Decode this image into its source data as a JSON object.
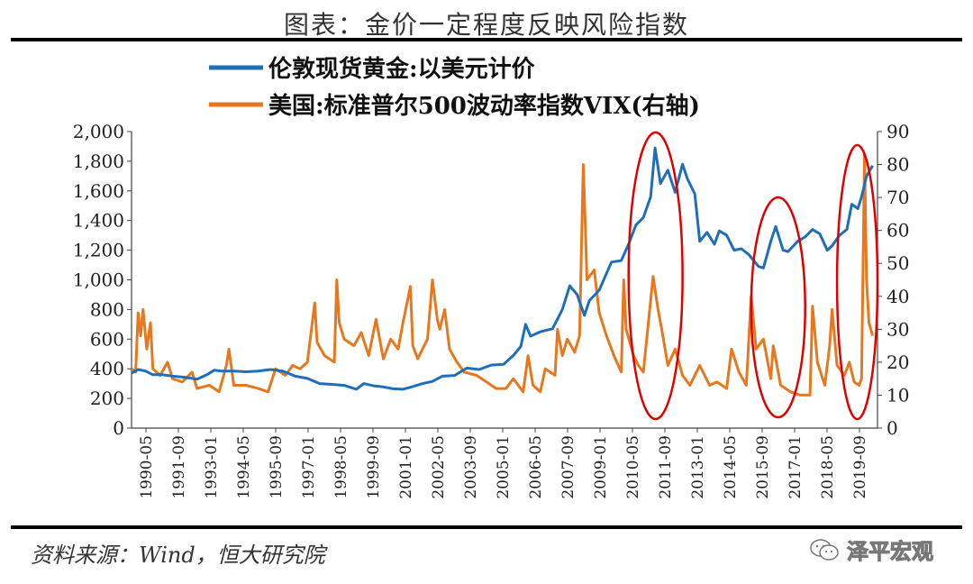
{
  "page": {
    "title": "图表：金价一定程度反映风险指数",
    "source": "资料来源：Wind，恒大研究院",
    "watermark": "泽平宏观"
  },
  "chart_data": {
    "type": "line",
    "title": "图表：金价一定程度反映风险指数",
    "xlabel": "",
    "ylabel": "",
    "x_tick_labels": [
      "1990-05",
      "1991-09",
      "1993-01",
      "1994-05",
      "1995-09",
      "1997-01",
      "1998-05",
      "1999-09",
      "2001-01",
      "2002-05",
      "2003-09",
      "2005-01",
      "2006-05",
      "2007-09",
      "2009-01",
      "2010-05",
      "2011-09",
      "2013-01",
      "2014-05",
      "2015-09",
      "2017-01",
      "2018-05",
      "2019-09"
    ],
    "y_left": {
      "ylim": [
        0,
        2000
      ],
      "ticks": [
        "0",
        "200",
        "400",
        "600",
        "800",
        "1,000",
        "1,200",
        "1,400",
        "1,600",
        "1,800",
        "2,000"
      ]
    },
    "y_right": {
      "ylim": [
        0,
        90
      ],
      "ticks": [
        "0",
        "10",
        "20",
        "30",
        "40",
        "50",
        "60",
        "70",
        "80",
        "90"
      ]
    },
    "series": [
      {
        "name": "伦敦现货黄金:以美元计价",
        "axis": "left",
        "color": "#1f6fb8",
        "points": [
          [
            1990.33,
            370
          ],
          [
            1990.6,
            395
          ],
          [
            1990.9,
            385
          ],
          [
            1991.2,
            360
          ],
          [
            1991.6,
            360
          ],
          [
            1992.0,
            350
          ],
          [
            1992.5,
            343
          ],
          [
            1993.0,
            330
          ],
          [
            1993.4,
            360
          ],
          [
            1993.7,
            390
          ],
          [
            1994.0,
            385
          ],
          [
            1994.5,
            385
          ],
          [
            1995.0,
            380
          ],
          [
            1995.5,
            385
          ],
          [
            1996.0,
            395
          ],
          [
            1996.5,
            385
          ],
          [
            1997.0,
            350
          ],
          [
            1997.5,
            335
          ],
          [
            1998.0,
            300
          ],
          [
            1998.5,
            295
          ],
          [
            1999.0,
            288
          ],
          [
            1999.5,
            262
          ],
          [
            1999.8,
            300
          ],
          [
            2000.2,
            285
          ],
          [
            2000.6,
            278
          ],
          [
            2001.0,
            265
          ],
          [
            2001.4,
            262
          ],
          [
            2001.8,
            280
          ],
          [
            2002.2,
            300
          ],
          [
            2002.6,
            315
          ],
          [
            2003.0,
            350
          ],
          [
            2003.5,
            355
          ],
          [
            2004.0,
            405
          ],
          [
            2004.5,
            395
          ],
          [
            2005.0,
            425
          ],
          [
            2005.5,
            430
          ],
          [
            2005.9,
            490
          ],
          [
            2006.2,
            550
          ],
          [
            2006.4,
            700
          ],
          [
            2006.6,
            620
          ],
          [
            2007.0,
            650
          ],
          [
            2007.5,
            670
          ],
          [
            2007.9,
            800
          ],
          [
            2008.2,
            960
          ],
          [
            2008.5,
            900
          ],
          [
            2008.8,
            760
          ],
          [
            2009.0,
            860
          ],
          [
            2009.4,
            930
          ],
          [
            2009.9,
            1120
          ],
          [
            2010.3,
            1130
          ],
          [
            2010.6,
            1240
          ],
          [
            2010.9,
            1370
          ],
          [
            2011.2,
            1420
          ],
          [
            2011.5,
            1560
          ],
          [
            2011.68,
            1890
          ],
          [
            2011.9,
            1650
          ],
          [
            2012.2,
            1740
          ],
          [
            2012.5,
            1590
          ],
          [
            2012.8,
            1780
          ],
          [
            2013.0,
            1680
          ],
          [
            2013.3,
            1580
          ],
          [
            2013.5,
            1260
          ],
          [
            2013.8,
            1320
          ],
          [
            2014.1,
            1240
          ],
          [
            2014.3,
            1330
          ],
          [
            2014.6,
            1300
          ],
          [
            2014.9,
            1200
          ],
          [
            2015.2,
            1210
          ],
          [
            2015.5,
            1170
          ],
          [
            2015.9,
            1090
          ],
          [
            2016.1,
            1080
          ],
          [
            2016.4,
            1260
          ],
          [
            2016.6,
            1360
          ],
          [
            2016.9,
            1200
          ],
          [
            2017.1,
            1190
          ],
          [
            2017.5,
            1260
          ],
          [
            2017.8,
            1290
          ],
          [
            2018.1,
            1340
          ],
          [
            2018.4,
            1310
          ],
          [
            2018.7,
            1200
          ],
          [
            2018.9,
            1230
          ],
          [
            2019.2,
            1300
          ],
          [
            2019.5,
            1340
          ],
          [
            2019.7,
            1510
          ],
          [
            2019.95,
            1480
          ],
          [
            2020.1,
            1560
          ],
          [
            2020.3,
            1700
          ],
          [
            2020.55,
            1770
          ]
        ]
      },
      {
        "name": "美国:标准普尔500波动率指数VIX(右轴)",
        "axis": "right",
        "color": "#e8771e",
        "points": [
          [
            1990.33,
            18
          ],
          [
            1990.5,
            17
          ],
          [
            1990.6,
            35
          ],
          [
            1990.7,
            28
          ],
          [
            1990.8,
            36
          ],
          [
            1990.95,
            24
          ],
          [
            1991.1,
            32
          ],
          [
            1991.2,
            18
          ],
          [
            1991.5,
            16
          ],
          [
            1991.8,
            20
          ],
          [
            1992.0,
            15
          ],
          [
            1992.4,
            14
          ],
          [
            1992.8,
            17
          ],
          [
            1993.0,
            12
          ],
          [
            1993.5,
            13
          ],
          [
            1993.9,
            11
          ],
          [
            1994.2,
            19
          ],
          [
            1994.3,
            24
          ],
          [
            1994.5,
            13
          ],
          [
            1995.0,
            13
          ],
          [
            1995.5,
            12
          ],
          [
            1995.9,
            11
          ],
          [
            1996.2,
            18
          ],
          [
            1996.6,
            16
          ],
          [
            1996.9,
            19
          ],
          [
            1997.2,
            18
          ],
          [
            1997.5,
            20
          ],
          [
            1997.8,
            38
          ],
          [
            1997.9,
            26
          ],
          [
            1998.2,
            22
          ],
          [
            1998.6,
            20
          ],
          [
            1998.7,
            45
          ],
          [
            1998.8,
            32
          ],
          [
            1999.0,
            27
          ],
          [
            1999.4,
            25
          ],
          [
            1999.7,
            29
          ],
          [
            2000.0,
            22
          ],
          [
            2000.3,
            33
          ],
          [
            2000.6,
            21
          ],
          [
            2000.9,
            27
          ],
          [
            2001.2,
            24
          ],
          [
            2001.4,
            32
          ],
          [
            2001.7,
            43
          ],
          [
            2001.8,
            25
          ],
          [
            2002.0,
            21
          ],
          [
            2002.4,
            27
          ],
          [
            2002.6,
            45
          ],
          [
            2002.8,
            33
          ],
          [
            2002.9,
            30
          ],
          [
            2003.1,
            36
          ],
          [
            2003.3,
            24
          ],
          [
            2003.6,
            20
          ],
          [
            2003.9,
            17
          ],
          [
            2004.4,
            16
          ],
          [
            2004.8,
            14
          ],
          [
            2005.2,
            12
          ],
          [
            2005.6,
            12
          ],
          [
            2005.9,
            15
          ],
          [
            2006.3,
            11
          ],
          [
            2006.5,
            22
          ],
          [
            2006.7,
            13
          ],
          [
            2007.0,
            11
          ],
          [
            2007.2,
            18
          ],
          [
            2007.6,
            16
          ],
          [
            2007.7,
            30
          ],
          [
            2007.9,
            22
          ],
          [
            2008.1,
            27
          ],
          [
            2008.4,
            23
          ],
          [
            2008.6,
            28
          ],
          [
            2008.75,
            80
          ],
          [
            2008.85,
            58
          ],
          [
            2008.9,
            45
          ],
          [
            2009.2,
            48
          ],
          [
            2009.4,
            35
          ],
          [
            2009.7,
            28
          ],
          [
            2010.0,
            22
          ],
          [
            2010.3,
            17
          ],
          [
            2010.4,
            45
          ],
          [
            2010.5,
            30
          ],
          [
            2010.8,
            22
          ],
          [
            2011.0,
            19
          ],
          [
            2011.2,
            17
          ],
          [
            2011.6,
            46
          ],
          [
            2011.8,
            36
          ],
          [
            2011.95,
            30
          ],
          [
            2012.2,
            19
          ],
          [
            2012.5,
            24
          ],
          [
            2012.8,
            16
          ],
          [
            2013.1,
            13
          ],
          [
            2013.5,
            19
          ],
          [
            2013.9,
            13
          ],
          [
            2014.2,
            14
          ],
          [
            2014.6,
            12
          ],
          [
            2014.8,
            24
          ],
          [
            2015.1,
            17
          ],
          [
            2015.4,
            13
          ],
          [
            2015.6,
            40
          ],
          [
            2015.8,
            24
          ],
          [
            2016.1,
            27
          ],
          [
            2016.4,
            15
          ],
          [
            2016.5,
            25
          ],
          [
            2016.8,
            13
          ],
          [
            2017.2,
            11
          ],
          [
            2017.6,
            10
          ],
          [
            2018.0,
            10
          ],
          [
            2018.1,
            37
          ],
          [
            2018.3,
            20
          ],
          [
            2018.6,
            13
          ],
          [
            2018.8,
            25
          ],
          [
            2018.9,
            36
          ],
          [
            2019.1,
            19
          ],
          [
            2019.4,
            16
          ],
          [
            2019.6,
            20
          ],
          [
            2019.8,
            14
          ],
          [
            2020.0,
            13
          ],
          [
            2020.1,
            15
          ],
          [
            2020.22,
            83
          ],
          [
            2020.3,
            45
          ],
          [
            2020.4,
            32
          ],
          [
            2020.55,
            28
          ]
        ]
      }
    ],
    "legend_position": "top-center",
    "annotations": [
      {
        "shape": "ellipse",
        "color": "#e00000",
        "x_range": [
          2010.6,
          2012.8
        ]
      },
      {
        "shape": "ellipse",
        "color": "#e00000",
        "x_range": [
          2015.6,
          2017.8
        ]
      },
      {
        "shape": "ellipse",
        "color": "#e00000",
        "x_range": [
          2019.1,
          2020.75
        ]
      }
    ],
    "grid": false
  }
}
